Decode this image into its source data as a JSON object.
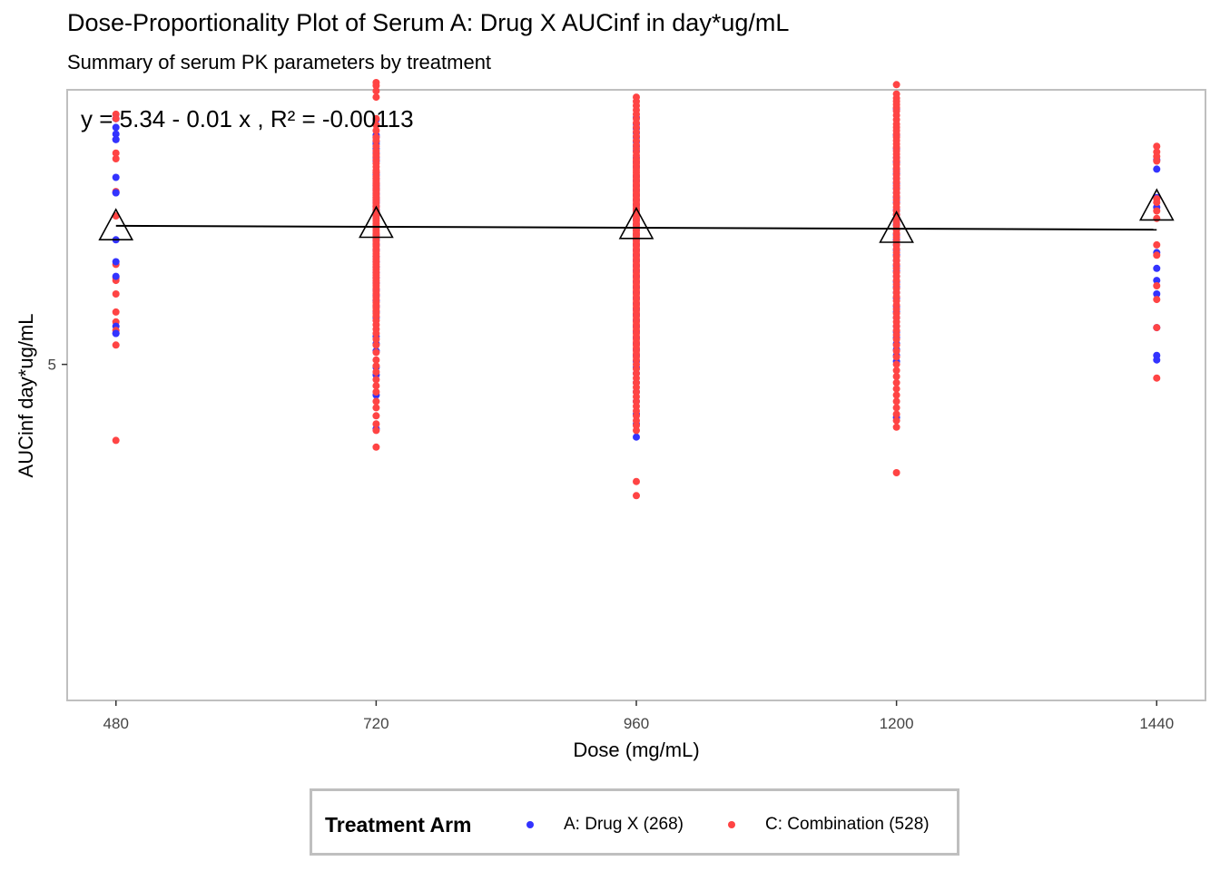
{
  "chart_data": {
    "type": "scatter",
    "title": "Dose-Proportionality Plot of Serum A: Drug X AUCinf in day*ug/mL",
    "subtitle": "Summary of serum PK parameters by treatment",
    "xlabel": "Dose (mg/mL)",
    "ylabel": "AUCinf day*ug/mL",
    "x_ticks": [
      480,
      720,
      960,
      1200,
      1440
    ],
    "y_ticks": [
      5
    ],
    "xlim": [
      435,
      1485
    ],
    "ylim": [
      3.2,
      7.2
    ],
    "y_scale": "log",
    "grid": false,
    "equation_label": "y = 5.34 - 0.01 x , R² = -0.00113",
    "regression": {
      "x": [
        480,
        1440
      ],
      "y": [
        6.01,
        5.98
      ]
    },
    "means": {
      "marker": "open-triangle",
      "x": [
        480,
        720,
        960,
        1200,
        1440
      ],
      "y": [
        6.01,
        6.03,
        6.02,
        5.99,
        6.17
      ]
    },
    "series": [
      {
        "name": "A: Drug X (268)",
        "color": "#3333ff",
        "points": {
          "480": [
            6.93,
            6.93,
            6.85,
            6.79,
            6.74,
            6.74,
            6.41,
            6.28,
            6.28,
            5.9,
            5.73,
            5.62,
            5.26,
            5.21,
            5.21
          ],
          "720": [
            6.92,
            6.78,
            6.76,
            6.72,
            6.7,
            6.66,
            6.62,
            6.58,
            6.55,
            6.45,
            6.43,
            6.4,
            6.36,
            6.34,
            6.32,
            6.3,
            6.27,
            6.24,
            6.22,
            6.2,
            6.17,
            6.14,
            6.12,
            6.09,
            5.94,
            5.9,
            5.86,
            5.82,
            5.77,
            5.73,
            5.69,
            5.65,
            5.61,
            5.57,
            5.52,
            5.48,
            5.44,
            5.4,
            5.36,
            5.32,
            5.19,
            5.14,
            5.09,
            4.98,
            4.93,
            4.8,
            4.59
          ],
          "960": [
            6.94,
            6.88,
            6.84,
            6.8,
            6.76,
            6.72,
            6.68,
            6.64,
            6.58,
            6.54,
            6.5,
            6.42,
            6.38,
            6.34,
            6.3,
            6.26,
            6.22,
            6.18,
            6.14,
            6.1,
            6.06,
            6.02,
            5.98,
            5.94,
            5.9,
            5.86,
            5.82,
            5.78,
            5.74,
            5.7,
            5.66,
            5.62,
            5.58,
            5.54,
            5.5,
            5.46,
            5.42,
            5.38,
            5.34,
            5.3,
            5.26,
            5.22,
            5.18,
            5.14,
            5.1,
            5.06,
            5.02,
            4.98,
            4.94,
            4.88,
            4.82,
            4.76,
            4.68,
            4.62,
            4.54
          ],
          "1200": [
            7.02,
            6.78,
            6.66,
            6.58,
            6.54,
            6.48,
            6.44,
            6.4,
            6.36,
            6.32,
            6.28,
            6.24,
            6.2,
            6.14,
            6.1,
            6.06,
            6.02,
            5.98,
            5.94,
            5.9,
            5.86,
            5.82,
            5.78,
            5.74,
            5.7,
            5.66,
            5.62,
            5.58,
            5.54,
            5.5,
            5.46,
            5.4,
            5.36,
            5.32,
            5.26,
            5.22,
            5.18,
            5.14,
            5.1,
            5.06,
            5.02,
            4.66
          ],
          "1440": [
            6.56,
            6.48,
            6.24,
            6.16,
            5.8,
            5.68,
            5.59,
            5.49,
            5.25,
            5.06,
            5.03
          ]
        }
      },
      {
        "name": "C: Combination (528)",
        "color": "#ff4444",
        "points": {
          "480": [
            6.97,
            6.93,
            6.62,
            6.57,
            6.29,
            6.09,
            5.71,
            5.61,
            5.59,
            5.49,
            5.36,
            5.29,
            5.23,
            5.13,
            4.52
          ],
          "720": [
            7.27,
            7.24,
            7.19,
            7.13,
            6.93,
            6.87,
            6.82,
            6.76,
            6.73,
            6.68,
            6.64,
            6.61,
            6.59,
            6.56,
            6.53,
            6.5,
            6.47,
            6.45,
            6.42,
            6.4,
            6.38,
            6.36,
            6.35,
            6.33,
            6.31,
            6.3,
            6.28,
            6.26,
            6.24,
            6.23,
            6.21,
            6.19,
            6.17,
            6.16,
            6.14,
            6.12,
            6.1,
            6.09,
            6.07,
            6.05,
            6.03,
            6.01,
            5.99,
            5.97,
            5.95,
            5.93,
            5.91,
            5.89,
            5.87,
            5.85,
            5.83,
            5.81,
            5.79,
            5.77,
            5.75,
            5.73,
            5.71,
            5.69,
            5.67,
            5.65,
            5.63,
            5.61,
            5.59,
            5.57,
            5.55,
            5.53,
            5.51,
            5.49,
            5.47,
            5.45,
            5.43,
            5.41,
            5.39,
            5.37,
            5.35,
            5.33,
            5.3,
            5.27,
            5.24,
            5.21,
            5.17,
            5.13,
            5.08,
            5.03,
            4.99,
            4.95,
            4.9,
            4.86,
            4.82,
            4.76,
            4.72,
            4.67,
            4.62,
            4.58,
            4.48
          ],
          "960": [
            7.13,
            7.09,
            7.05,
            7.01,
            6.97,
            6.93,
            6.89,
            6.85,
            6.81,
            6.77,
            6.73,
            6.69,
            6.66,
            6.63,
            6.6,
            6.57,
            6.55,
            6.53,
            6.51,
            6.49,
            6.47,
            6.45,
            6.43,
            6.41,
            6.39,
            6.37,
            6.35,
            6.33,
            6.31,
            6.29,
            6.27,
            6.25,
            6.23,
            6.21,
            6.19,
            6.17,
            6.15,
            6.13,
            6.11,
            6.09,
            6.07,
            6.05,
            6.03,
            6.01,
            5.99,
            5.97,
            5.95,
            5.93,
            5.91,
            5.89,
            5.87,
            5.85,
            5.83,
            5.81,
            5.79,
            5.77,
            5.75,
            5.73,
            5.71,
            5.69,
            5.67,
            5.65,
            5.63,
            5.61,
            5.59,
            5.57,
            5.55,
            5.53,
            5.51,
            5.49,
            5.47,
            5.45,
            5.43,
            5.41,
            5.39,
            5.37,
            5.35,
            5.33,
            5.31,
            5.29,
            5.27,
            5.25,
            5.23,
            5.21,
            5.19,
            5.17,
            5.15,
            5.13,
            5.11,
            5.09,
            5.07,
            5.05,
            5.03,
            5.0,
            4.97,
            4.94,
            4.91,
            4.88,
            4.85,
            4.82,
            4.79,
            4.76,
            4.73,
            4.7,
            4.67,
            4.64,
            4.61,
            4.58,
            4.28,
            4.2
          ],
          "1200": [
            7.25,
            7.16,
            7.12,
            7.09,
            7.06,
            7.03,
            7.0,
            6.96,
            6.92,
            6.88,
            6.85,
            6.82,
            6.79,
            6.76,
            6.73,
            6.7,
            6.67,
            6.64,
            6.61,
            6.58,
            6.55,
            6.52,
            6.49,
            6.46,
            6.43,
            6.4,
            6.37,
            6.34,
            6.31,
            6.28,
            6.25,
            6.22,
            6.19,
            6.16,
            6.13,
            6.1,
            6.07,
            6.04,
            6.01,
            5.98,
            5.95,
            5.92,
            5.89,
            5.86,
            5.83,
            5.8,
            5.77,
            5.74,
            5.71,
            5.68,
            5.65,
            5.62,
            5.59,
            5.56,
            5.53,
            5.5,
            5.47,
            5.44,
            5.41,
            5.38,
            5.35,
            5.32,
            5.29,
            5.26,
            5.23,
            5.2,
            5.17,
            5.13,
            5.09,
            5.05,
            5.0,
            4.96,
            4.92,
            4.88,
            4.84,
            4.8,
            4.76,
            4.72,
            4.68,
            4.64,
            4.6,
            4.33
          ],
          "1440": [
            6.68,
            6.63,
            6.59,
            6.55,
            6.23,
            6.2,
            6.13,
            6.07,
            5.86,
            5.78,
            5.55,
            5.45,
            5.25,
            4.91
          ]
        }
      }
    ],
    "legend": {
      "title": "Treatment Arm",
      "position": "bottom",
      "entries": [
        "A: Drug X (268)",
        "C: Combination (528)"
      ]
    }
  }
}
